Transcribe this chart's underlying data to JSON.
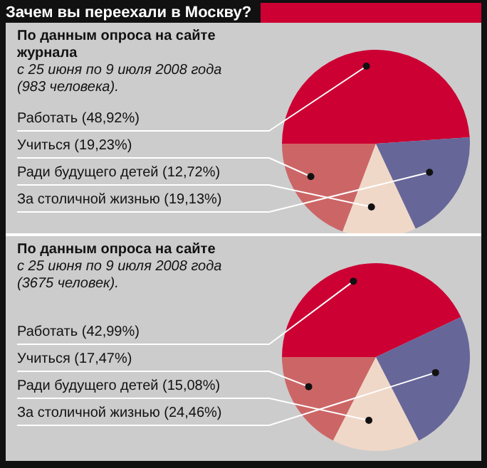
{
  "chart_data": [
    {
      "type": "pie",
      "title": "Зачем вы переехали в Москву?",
      "subtitle": "По данным опроса на сайте журнала",
      "annotations": [
        "с 25 июня по 9 июля 2008 года",
        "(983 человека)."
      ],
      "categories": [
        "Работать",
        "Учиться",
        "Ради будущего детей",
        "За столичной жизнью"
      ],
      "values": [
        48.92,
        19.23,
        12.72,
        19.13
      ],
      "value_labels": [
        "(48,92%)",
        "(19,23%)",
        "(12,72%)",
        "(19,13%)"
      ],
      "colors": [
        "#cc0033",
        "#cc6666",
        "#f0d8c8",
        "#666699"
      ],
      "legend": false
    },
    {
      "type": "pie",
      "subtitle": "По данным опроса на сайте",
      "annotations": [
        "с 25 июня по 9 июля 2008 года",
        "(3675 человек)."
      ],
      "categories": [
        "Работать",
        "Учиться",
        "Ради будущего детей",
        "За столичной жизнью"
      ],
      "values": [
        42.99,
        17.47,
        15.08,
        24.46
      ],
      "value_labels": [
        "(42,99%)",
        "(17,47%)",
        "(15,08%)",
        "(24,46%)"
      ],
      "colors": [
        "#cc0033",
        "#cc6666",
        "#f0d8c8",
        "#666699"
      ],
      "legend": false
    }
  ]
}
